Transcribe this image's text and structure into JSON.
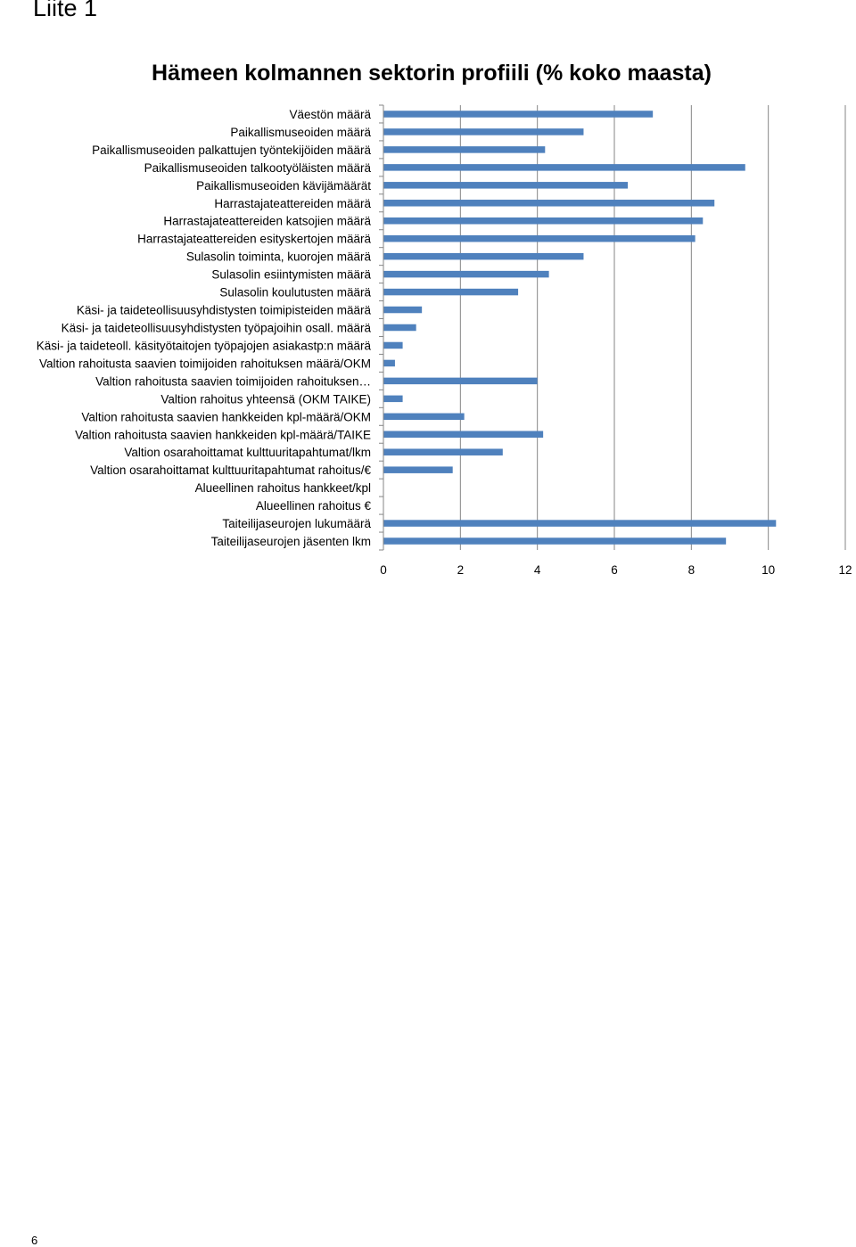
{
  "page": {
    "header": "Liite 1",
    "page_number": "6"
  },
  "chart_data": {
    "type": "bar",
    "orientation": "horizontal",
    "title": "Hämeen kolmannen sektorin profiili (% koko maasta)",
    "categories": [
      "Väestön määrä",
      "Paikallismuseoiden määrä",
      "Paikallismuseoiden palkattujen työntekijöiden määrä",
      "Paikallismuseoiden talkootyöläisten määrä",
      "Paikallismuseoiden kävijämäärät",
      "Harrastajateattereiden määrä",
      "Harrastajateattereiden katsojien määrä",
      "Harrastajateattereiden esityskertojen määrä",
      "Sulasolin toiminta, kuorojen määrä",
      "Sulasolin esiintymisten määrä",
      "Sulasolin koulutusten määrä",
      "Käsi- ja taideteollisuusyhdistysten toimipisteiden määrä",
      "Käsi- ja taideteollisuusyhdistysten työpajoihin osall. määrä",
      "Käsi- ja taideteoll. käsityötaitojen työpajojen asiakastp:n määrä",
      "Valtion rahoitusta saavien toimijoiden rahoituksen määrä/OKM",
      "Valtion rahoitusta saavien toimijoiden rahoituksen…",
      "Valtion rahoitus yhteensä (OKM  TAIKE)",
      "Valtion rahoitusta saavien hankkeiden kpl-määrä/OKM",
      "Valtion rahoitusta saavien hankkeiden kpl-määrä/TAIKE",
      "Valtion osarahoittamat kulttuuritapahtumat/lkm",
      "Valtion osarahoittamat kulttuuritapahtumat rahoitus/€",
      "Alueellinen rahoitus hankkeet/kpl",
      "Alueellinen rahoitus €",
      "Taiteilijaseurojen lukumäärä",
      "Taiteilijaseurojen jäsenten lkm"
    ],
    "values": [
      7.0,
      5.2,
      4.2,
      9.4,
      6.35,
      8.6,
      8.3,
      8.1,
      5.2,
      4.3,
      3.5,
      1.0,
      0.85,
      0.5,
      0.3,
      4.0,
      0.5,
      2.1,
      4.15,
      3.1,
      1.8,
      0,
      0,
      10.2,
      8.9
    ],
    "xlim": [
      0,
      12
    ],
    "xticks": [
      "0",
      "2",
      "4",
      "6",
      "8",
      "10",
      "12"
    ],
    "grid": true,
    "legend": "none",
    "colors": {
      "bar": "#4f81bd",
      "grid": "#868686",
      "axis": "#868686"
    }
  }
}
